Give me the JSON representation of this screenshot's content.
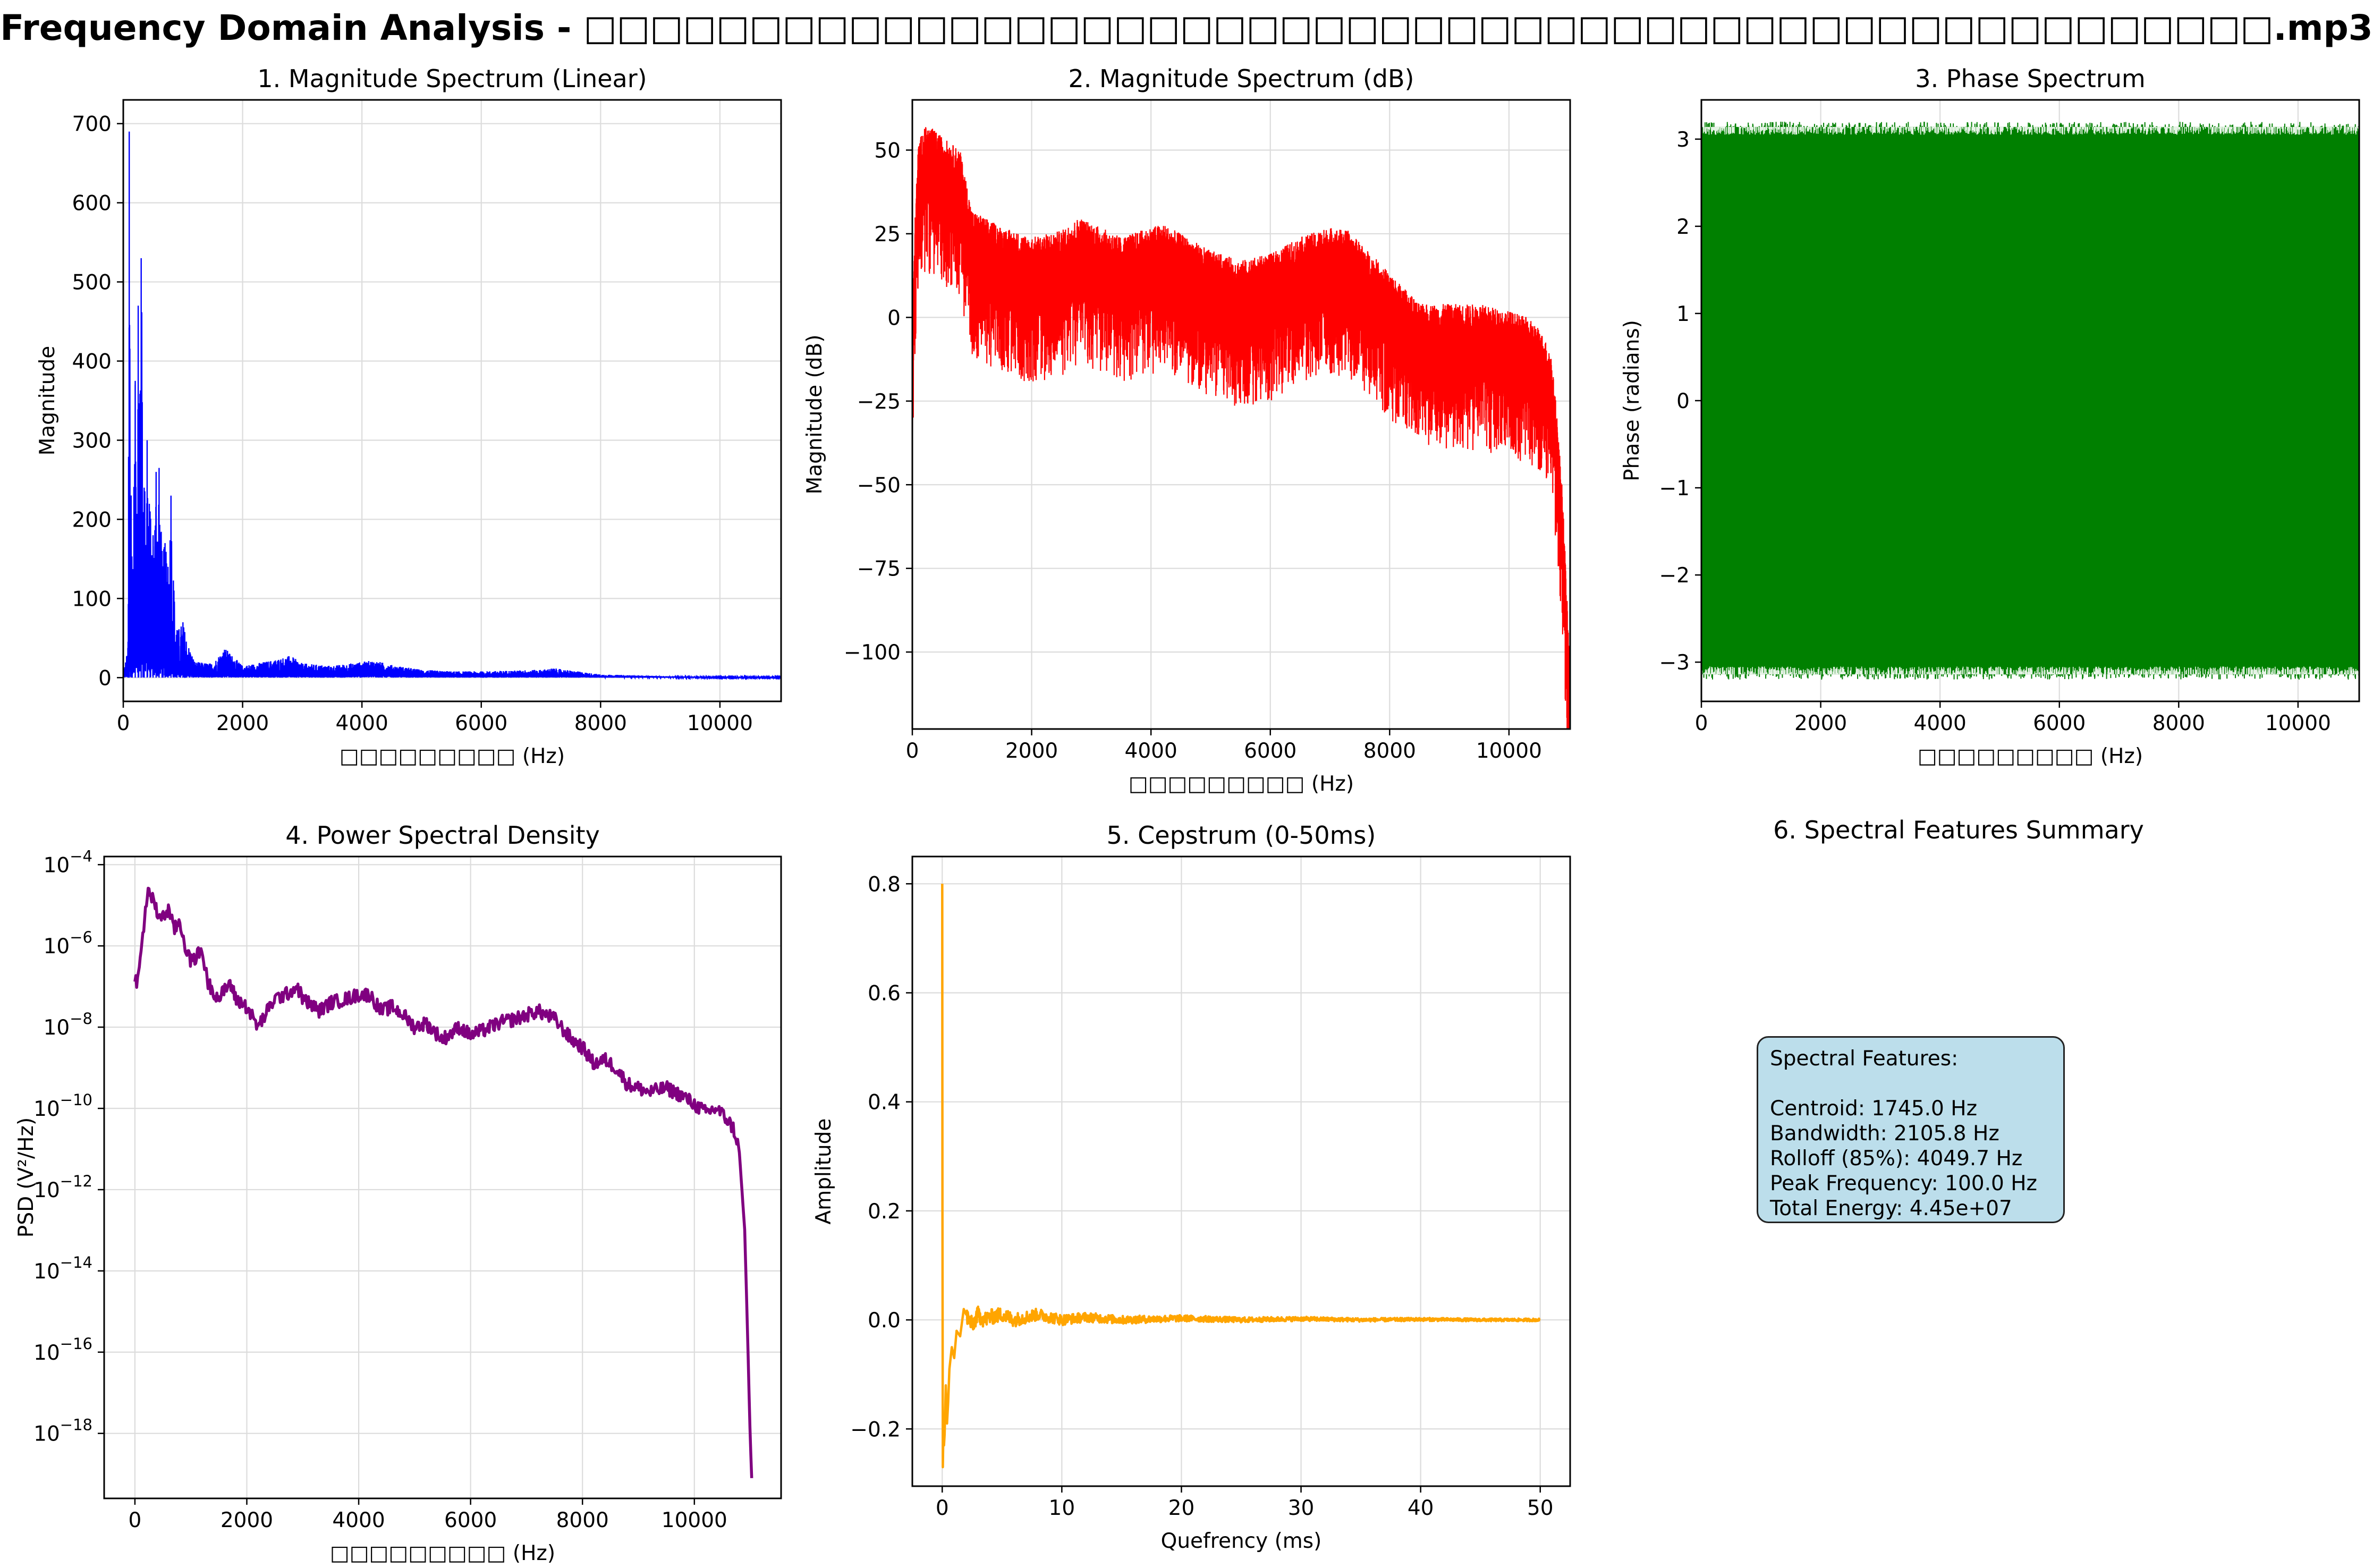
{
  "figure_title": "Frequency Domain Analysis - □□□□□□□□□□□□□□□□□□□□□□□□□□□□□□□□□□□□□□□□□□□□□□□□□□□.mp3",
  "colors": {
    "p1": "#0000ff",
    "p2": "#ff0000",
    "p3": "#008000",
    "p4": "#800080",
    "p5": "#ffa500",
    "summary_bg": "#bcdeeb"
  },
  "chart_data": [
    {
      "id": "p1",
      "type": "line",
      "title": "1. Magnitude Spectrum (Linear)",
      "xlabel": "□□□□□□□□□ (Hz)",
      "ylabel": "Magnitude",
      "xlim": [
        0,
        11025
      ],
      "ylim": [
        -30,
        730
      ],
      "yscale": "linear",
      "grid": true,
      "xticks": [
        0,
        2000,
        4000,
        6000,
        8000,
        10000
      ],
      "xticklabels": [
        "0",
        "2000",
        "4000",
        "6000",
        "8000",
        "10000"
      ],
      "yticks": [
        0,
        100,
        200,
        300,
        400,
        500,
        600,
        700
      ],
      "yticklabels": [
        "0",
        "100",
        "200",
        "300",
        "400",
        "500",
        "600",
        "700"
      ],
      "series": [
        {
          "x": [
            0,
            80,
            100,
            150,
            200,
            250,
            300,
            350,
            400,
            450,
            500,
            550,
            600,
            650,
            700,
            750,
            800,
            850,
            900,
            1000,
            1100,
            1200,
            1500,
            1700,
            2000,
            2500,
            2800,
            3000,
            3500,
            4000,
            4200,
            4500,
            5000,
            5500,
            6000,
            6500,
            7000,
            7200,
            7500,
            8000,
            8500,
            9000,
            10000,
            11025
          ],
          "y": [
            5,
            40,
            690,
            120,
            375,
            470,
            530,
            240,
            300,
            210,
            180,
            260,
            265,
            160,
            170,
            140,
            230,
            110,
            60,
            70,
            40,
            20,
            18,
            38,
            15,
            22,
            28,
            18,
            15,
            20,
            22,
            16,
            10,
            8,
            8,
            9,
            10,
            12,
            9,
            4,
            3,
            2,
            1,
            1
          ]
        }
      ]
    },
    {
      "id": "p2",
      "type": "line",
      "title": "2. Magnitude Spectrum (dB)",
      "xlabel": "□□□□□□□□□ (Hz)",
      "ylabel": "Magnitude (dB)",
      "xlim": [
        0,
        11025
      ],
      "ylim": [
        -123,
        65
      ],
      "yscale": "linear",
      "grid": true,
      "xticks": [
        0,
        2000,
        4000,
        6000,
        8000,
        10000
      ],
      "xticklabels": [
        "0",
        "2000",
        "4000",
        "6000",
        "8000",
        "10000"
      ],
      "yticks": [
        50,
        25,
        0,
        -25,
        -50,
        -75,
        -100
      ],
      "yticklabels": [
        "50",
        "25",
        "0",
        "−25",
        "−50",
        "−75",
        "−100"
      ],
      "series": [
        {
          "x": [
            0,
            50,
            100,
            200,
            300,
            500,
            800,
            1000,
            1500,
            2000,
            2500,
            2800,
            3500,
            4000,
            4200,
            5000,
            5500,
            6000,
            6500,
            7000,
            7300,
            7800,
            8500,
            9000,
            9500,
            10000,
            10300,
            10500,
            10700,
            10800,
            10900,
            11000,
            11025
          ],
          "y": [
            -13,
            20,
            40,
            45,
            45,
            42,
            38,
            20,
            15,
            12,
            14,
            18,
            12,
            15,
            16,
            8,
            5,
            7,
            12,
            15,
            14,
            5,
            -8,
            -8,
            -8,
            -10,
            -12,
            -15,
            -22,
            -40,
            -65,
            -108,
            -110
          ]
        }
      ]
    },
    {
      "id": "p3",
      "type": "line",
      "title": "3. Phase Spectrum",
      "xlabel": "□□□□□□□□□ (Hz)",
      "ylabel": "Phase (radians)",
      "xlim": [
        0,
        11025
      ],
      "ylim": [
        -3.45,
        3.45
      ],
      "yscale": "linear",
      "grid": true,
      "xticks": [
        0,
        2000,
        4000,
        6000,
        8000,
        10000
      ],
      "xticklabels": [
        "0",
        "2000",
        "4000",
        "6000",
        "8000",
        "10000"
      ],
      "yticks": [
        3,
        2,
        1,
        0,
        -1,
        -2,
        -3
      ],
      "yticklabels": [
        "3",
        "2",
        "1",
        "0",
        "−1",
        "−2",
        "−3"
      ],
      "series": [
        {
          "x": [
            0,
            11025
          ],
          "y_min": -3.14,
          "y_max": 3.14,
          "fill": "dense"
        }
      ]
    },
    {
      "id": "p4",
      "type": "line",
      "title": "4. Power Spectral Density",
      "xlabel": "□□□□□□□□□ (Hz)",
      "ylabel": "PSD (V²/Hz)",
      "xlim": [
        -550,
        11550
      ],
      "ylim_log10": [
        -19.6,
        -3.8
      ],
      "yscale": "log",
      "grid": true,
      "xticks": [
        0,
        2000,
        4000,
        6000,
        8000,
        10000
      ],
      "xticklabels": [
        "0",
        "2000",
        "4000",
        "6000",
        "8000",
        "10000"
      ],
      "yticks_log10": [
        -4,
        -6,
        -8,
        -10,
        -12,
        -14,
        -16,
        -18
      ],
      "yticklabels": [
        {
          "base": "10",
          "exp": "−4"
        },
        {
          "base": "10",
          "exp": "−6"
        },
        {
          "base": "10",
          "exp": "−8"
        },
        {
          "base": "10",
          "exp": "−10"
        },
        {
          "base": "10",
          "exp": "−12"
        },
        {
          "base": "10",
          "exp": "−14"
        },
        {
          "base": "10",
          "exp": "−16"
        },
        {
          "base": "10",
          "exp": "−18"
        }
      ],
      "series": [
        {
          "x": [
            0,
            50,
            100,
            150,
            200,
            250,
            300,
            400,
            500,
            600,
            700,
            800,
            900,
            1000,
            1200,
            1300,
            1500,
            1700,
            1800,
            2000,
            2200,
            2500,
            2700,
            2900,
            3000,
            3300,
            3500,
            3800,
            4000,
            4200,
            4400,
            4600,
            4800,
            5000,
            5200,
            5500,
            5800,
            6000,
            6200,
            6500,
            6800,
            7000,
            7200,
            7500,
            7800,
            8000,
            8200,
            8400,
            8600,
            8800,
            9000,
            9200,
            9500,
            9800,
            10000,
            10200,
            10400,
            10600,
            10700,
            10800,
            10900,
            10950,
            11000,
            11025
          ],
          "y_log10": [
            -6.8,
            -6.9,
            -6.3,
            -5.6,
            -5.0,
            -4.6,
            -4.8,
            -5.2,
            -5.3,
            -5.1,
            -5.6,
            -5.4,
            -6.0,
            -6.4,
            -6.1,
            -6.9,
            -7.3,
            -6.9,
            -7.3,
            -7.5,
            -8.0,
            -7.3,
            -7.2,
            -7.0,
            -7.3,
            -7.6,
            -7.4,
            -7.3,
            -7.2,
            -7.2,
            -7.6,
            -7.5,
            -7.7,
            -8.0,
            -7.9,
            -8.3,
            -8.0,
            -8.2,
            -8.1,
            -7.9,
            -7.8,
            -7.7,
            -7.6,
            -7.8,
            -8.3,
            -8.5,
            -8.9,
            -8.8,
            -9.0,
            -9.4,
            -9.5,
            -9.6,
            -9.5,
            -9.7,
            -9.9,
            -10.1,
            -10.0,
            -10.3,
            -10.5,
            -11.0,
            -13.0,
            -15.5,
            -18.2,
            -19.1
          ]
        }
      ]
    },
    {
      "id": "p5",
      "type": "line",
      "title": "5. Cepstrum (0-50ms)",
      "xlabel": "Quefrency (ms)",
      "ylabel": "Amplitude",
      "xlim": [
        -2.5,
        52.5
      ],
      "ylim": [
        -0.305,
        0.85
      ],
      "yscale": "linear",
      "grid": true,
      "xticks": [
        0,
        10,
        20,
        30,
        40,
        50
      ],
      "xticklabels": [
        "0",
        "10",
        "20",
        "30",
        "40",
        "50"
      ],
      "yticks": [
        0.8,
        0.6,
        0.4,
        0.2,
        0.0,
        -0.2
      ],
      "yticklabels": [
        "0.8",
        "0.6",
        "0.4",
        "0.2",
        "0.0",
        "−0.2"
      ],
      "series": [
        {
          "x": [
            0,
            0.02,
            0.05,
            0.1,
            0.15,
            0.2,
            0.3,
            0.4,
            0.5,
            0.6,
            0.8,
            1.0,
            1.2,
            1.5,
            1.8,
            2.0,
            2.5,
            3.0,
            3.5,
            4.0,
            5.0,
            6.0,
            7.0,
            8.0,
            10.0,
            12.0,
            15.0,
            20.0,
            25.0,
            30.0,
            35.0,
            40.0,
            45.0,
            50.0
          ],
          "y": [
            0.8,
            0.2,
            -0.27,
            -0.2,
            -0.23,
            -0.21,
            -0.12,
            -0.19,
            -0.15,
            -0.09,
            -0.05,
            -0.07,
            -0.02,
            -0.03,
            0.02,
            0.01,
            -0.01,
            0.01,
            0.0,
            0.005,
            0.01,
            0.0,
            0.005,
            0.01,
            0.0,
            0.005,
            0.0,
            0.003,
            0.0,
            0.002,
            0.0,
            0.001,
            0.0,
            0.0
          ]
        }
      ]
    }
  ],
  "summary": {
    "title": "6. Spectral Features Summary",
    "heading": "Spectral Features:",
    "lines": [
      "Centroid: 1745.0 Hz",
      "Bandwidth: 2105.8 Hz",
      "Rolloff (85%): 4049.7 Hz",
      "Peak Frequency: 100.0 Hz",
      "Total Energy: 4.45e+07"
    ]
  }
}
